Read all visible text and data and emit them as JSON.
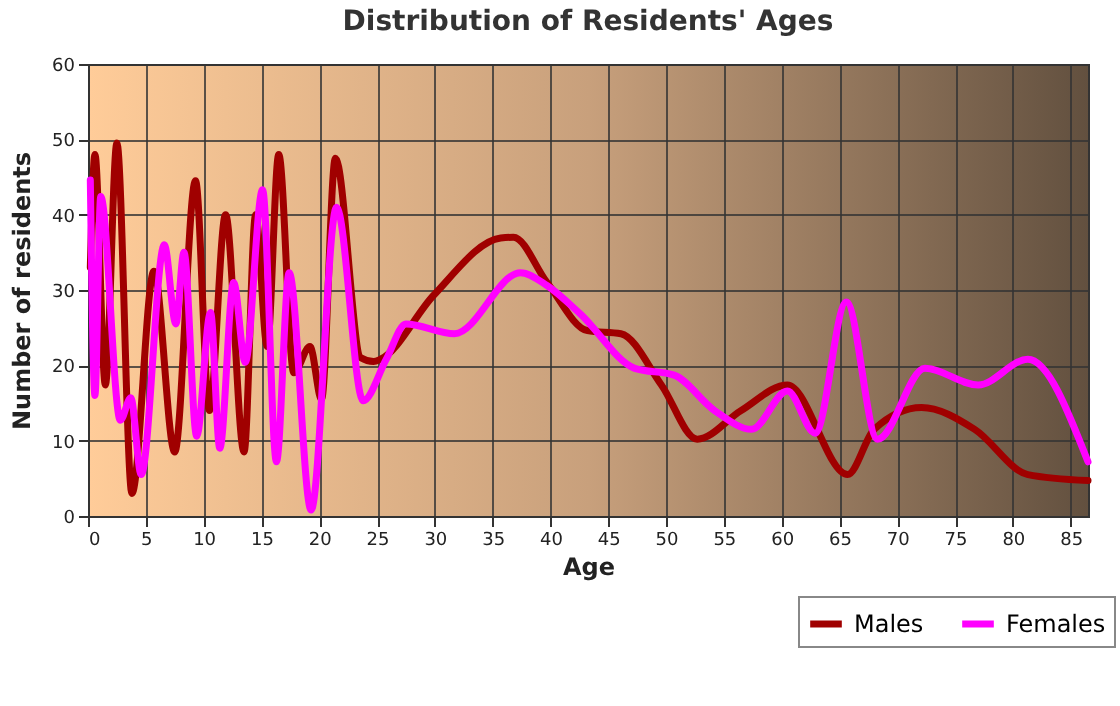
{
  "chart_data": {
    "type": "line",
    "title": "Distribution of Residents' Ages",
    "xlabel": "Age",
    "ylabel": "Number of residents",
    "xlim": [
      0,
      86.5
    ],
    "xticks": [
      0,
      5,
      10,
      15,
      20,
      25,
      30,
      35,
      40,
      45,
      50,
      55,
      60,
      65,
      70,
      75,
      80,
      85
    ],
    "ylim": [
      0,
      60
    ],
    "yticks": [
      0,
      10,
      20,
      30,
      40,
      50,
      60
    ],
    "grid": true,
    "legend": "bottom right",
    "line_style": "solid",
    "marker": "none",
    "series": [
      {
        "name": "Males",
        "color": "#a00000",
        "x": [
          0.2,
          0.6,
          1.5,
          2.5,
          3.8,
          5.7,
          7.5,
          9.3,
          10.5,
          11.9,
          13.5,
          14.5,
          15.5,
          16.5,
          17.8,
          19.2,
          20.2,
          21.4,
          23.6,
          24.7,
          25.3,
          29.9,
          35.7,
          36.8,
          39.7,
          43.2,
          46.1,
          49.6,
          52.7,
          56.5,
          60.5,
          65.7,
          68,
          72.1,
          76.7,
          81.3,
          86.5
        ],
        "values": [
          33,
          48,
          17.4,
          49.5,
          3,
          32.5,
          8.5,
          44.5,
          14,
          40,
          8.5,
          40,
          22.5,
          48,
          19,
          22.5,
          15.5,
          47.5,
          21,
          20.5,
          20.8,
          29.3,
          36.9,
          37,
          31,
          24.6,
          24.2,
          17.4,
          10.2,
          14,
          17.4,
          5.5,
          11.5,
          14.4,
          11.5,
          5.5,
          4.7
        ]
      },
      {
        "name": "Females",
        "color": "#ff00ff",
        "x": [
          0.2,
          0.6,
          1.1,
          2.8,
          3.7,
          4.6,
          6.6,
          7.6,
          8.3,
          9.4,
          10.6,
          11.4,
          12.6,
          13.6,
          15.1,
          16.3,
          17.4,
          19.3,
          21.5,
          23.8,
          25.8,
          27.5,
          31.7,
          37.4,
          39.7,
          42.6,
          47.3,
          50.7,
          54.2,
          57.4,
          60.5,
          62.9,
          65.6,
          68.3,
          72.4,
          77,
          81.3,
          86.5
        ],
        "values": [
          44.6,
          16,
          42.4,
          12.7,
          15.7,
          5.5,
          36,
          25.5,
          35,
          10.6,
          27,
          9,
          31,
          20.4,
          43.3,
          7.2,
          32.3,
          0.8,
          41,
          15.3,
          20.8,
          25.5,
          24.2,
          32.3,
          30.6,
          26.8,
          19.6,
          18.7,
          14,
          11.5,
          16.6,
          11,
          28.4,
          10.2,
          19.6,
          17.4,
          20.8,
          7.2
        ]
      }
    ]
  }
}
